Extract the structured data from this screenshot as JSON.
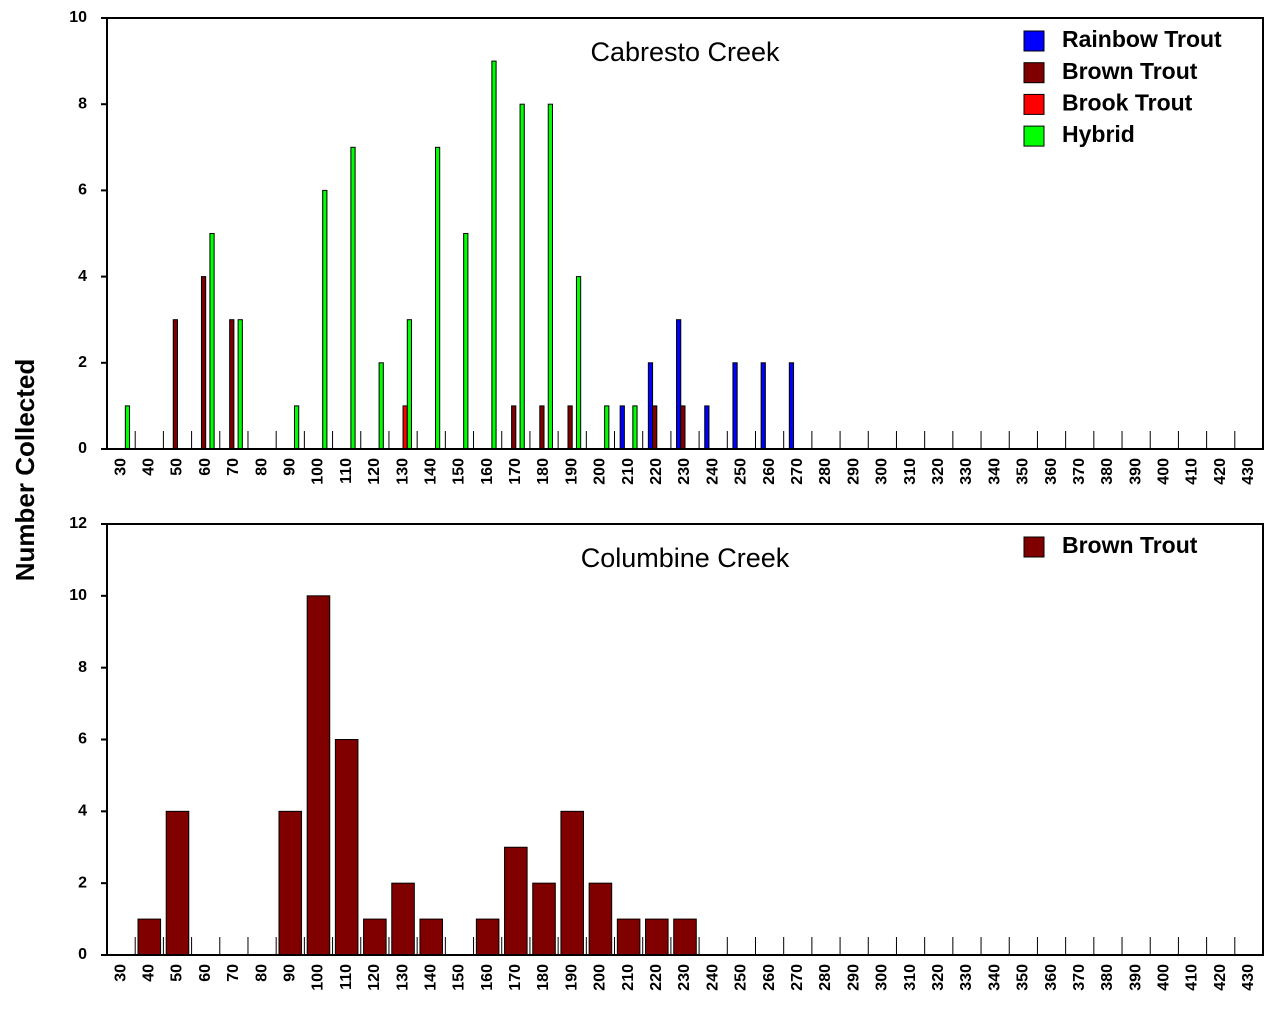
{
  "ylabel": "Number Collected",
  "chart_data": [
    {
      "type": "bar",
      "title": "Cabresto Creek",
      "categories": [
        "30",
        "40",
        "50",
        "60",
        "70",
        "80",
        "90",
        "100",
        "110",
        "120",
        "130",
        "140",
        "150",
        "160",
        "170",
        "180",
        "190",
        "200",
        "210",
        "220",
        "230",
        "240",
        "250",
        "260",
        "270",
        "280",
        "290",
        "300",
        "310",
        "320",
        "330",
        "340",
        "350",
        "360",
        "370",
        "380",
        "390",
        "400",
        "410",
        "420",
        "430"
      ],
      "series": [
        {
          "name": "Rainbow Trout",
          "color": "#0000ff",
          "values": [
            0,
            0,
            0,
            0,
            0,
            0,
            0,
            0,
            0,
            0,
            0,
            0,
            0,
            0,
            0,
            0,
            0,
            0,
            1,
            2,
            3,
            1,
            2,
            2,
            2,
            0,
            0,
            0,
            0,
            0,
            0,
            0,
            0,
            0,
            0,
            0,
            0,
            0,
            0,
            0,
            0
          ]
        },
        {
          "name": "Brown Trout",
          "color": "#800000",
          "values": [
            0,
            0,
            3,
            4,
            3,
            0,
            0,
            0,
            0,
            0,
            0,
            0,
            0,
            0,
            1,
            1,
            1,
            0,
            0,
            1,
            1,
            0,
            0,
            0,
            0,
            0,
            0,
            0,
            0,
            0,
            0,
            0,
            0,
            0,
            0,
            0,
            0,
            0,
            0,
            0,
            0
          ]
        },
        {
          "name": "Brook Trout",
          "color": "#ff0000",
          "values": [
            0,
            0,
            0,
            0,
            0,
            0,
            0,
            0,
            0,
            0,
            1,
            0,
            0,
            0,
            0,
            0,
            0,
            0,
            0,
            0,
            0,
            0,
            0,
            0,
            0,
            0,
            0,
            0,
            0,
            0,
            0,
            0,
            0,
            0,
            0,
            0,
            0,
            0,
            0,
            0,
            0
          ]
        },
        {
          "name": "Hybrid",
          "color": "#00ff00",
          "values": [
            1,
            0,
            0,
            5,
            3,
            0,
            1,
            6,
            7,
            2,
            3,
            7,
            5,
            9,
            8,
            8,
            4,
            1,
            1,
            0,
            0,
            0,
            0,
            0,
            0,
            0,
            0,
            0,
            0,
            0,
            0,
            0,
            0,
            0,
            0,
            0,
            0,
            0,
            0,
            0,
            0
          ]
        }
      ],
      "ylim": [
        0,
        10
      ],
      "yticks": [
        0,
        2,
        4,
        6,
        8,
        10
      ],
      "legend": "upper right"
    },
    {
      "type": "bar",
      "title": "Columbine Creek",
      "categories": [
        "30",
        "40",
        "50",
        "60",
        "70",
        "80",
        "90",
        "100",
        "110",
        "120",
        "130",
        "140",
        "150",
        "160",
        "170",
        "180",
        "190",
        "200",
        "210",
        "220",
        "230",
        "240",
        "250",
        "260",
        "270",
        "280",
        "290",
        "300",
        "310",
        "320",
        "330",
        "340",
        "350",
        "360",
        "370",
        "380",
        "390",
        "400",
        "410",
        "420",
        "430"
      ],
      "series": [
        {
          "name": "Brown Trout",
          "color": "#800000",
          "values": [
            0,
            1,
            4,
            0,
            0,
            0,
            4,
            10,
            6,
            1,
            2,
            1,
            0,
            1,
            3,
            2,
            4,
            2,
            1,
            1,
            1,
            0,
            0,
            0,
            0,
            0,
            0,
            0,
            0,
            0,
            0,
            0,
            0,
            0,
            0,
            0,
            0,
            0,
            0,
            0,
            0
          ]
        }
      ],
      "ylim": [
        0,
        12
      ],
      "yticks": [
        0,
        2,
        4,
        6,
        8,
        10,
        12
      ],
      "legend": "upper right"
    }
  ]
}
